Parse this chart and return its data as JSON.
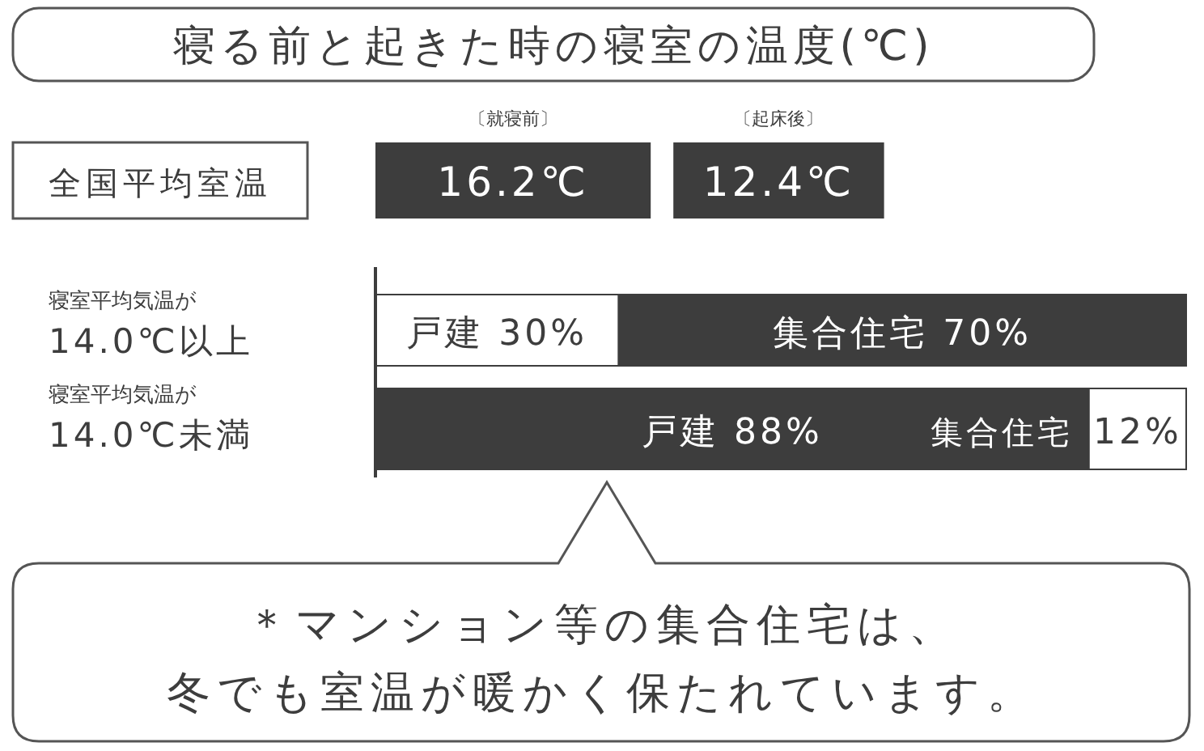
{
  "chart_data": [
    {
      "type": "other",
      "title": "寝る前と起きた時の寝室の温度(℃)",
      "ylabel": "全国平均室温",
      "categories": [
        "〔就寝前〕",
        "〔起床後〕"
      ],
      "values": [
        16.2,
        12.4
      ],
      "value_labels": [
        "16.2℃",
        "12.4℃"
      ],
      "color": "#3d3d3d"
    },
    {
      "type": "bar",
      "orientation": "horizontal",
      "stacked": true,
      "categories": [
        "寝室平均気温が\n14.0℃以上",
        "寝室平均気温が\n14.0℃未満"
      ],
      "series": [
        {
          "name": "戸建",
          "colors": [
            "#ffffff",
            "#3d3d3d"
          ],
          "values": [
            30,
            88
          ],
          "value_labels": [
            "30%",
            "88%"
          ]
        },
        {
          "name": "集合住宅",
          "colors": [
            "#3d3d3d",
            "#ffffff"
          ],
          "values": [
            70,
            12
          ],
          "value_labels": [
            "70%",
            "12%"
          ]
        }
      ],
      "annotations": [
        "＊マンション等の集合住宅は、",
        "冬でも室温が暖かく保たれています。"
      ]
    }
  ]
}
